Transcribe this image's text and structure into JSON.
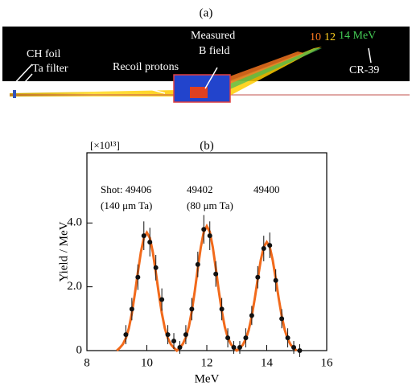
{
  "figure_a": {
    "label": "(a)",
    "ch_foil": "CH foil",
    "ta_filter": "Ta filter",
    "recoil": "Recoil protons",
    "measured": "Measured",
    "b_field": "B field",
    "e10": "10",
    "e12": "12",
    "e14": "14 MeV",
    "cr39": "CR-39"
  },
  "chart_data": {
    "type": "scatter",
    "title": "(b)",
    "multiplier": "[×10¹³]",
    "xlabel": "MeV",
    "ylabel": "Yield / MeV",
    "annotations": [
      "Shot: 49406",
      "(140 μm Ta)",
      "49402",
      "(80 μm Ta)",
      "49400"
    ],
    "xlim": [
      8,
      16
    ],
    "xticks": [
      8,
      10,
      12,
      14,
      16
    ],
    "ylim": [
      0,
      6.2
    ],
    "yticks": [
      0,
      {
        "value": 2,
        "label": "2.0"
      },
      {
        "value": 4,
        "label": "4.0"
      }
    ],
    "color": "#111111",
    "x": [
      9.3,
      9.5,
      9.7,
      9.9,
      10.1,
      10.3,
      10.5,
      10.7,
      10.9,
      11.1,
      11.3,
      11.5,
      11.7,
      11.9,
      12.1,
      12.3,
      12.5,
      12.7,
      12.9,
      13.1,
      13.3,
      13.5,
      13.7,
      13.9,
      14.1,
      14.3,
      14.5,
      14.7,
      14.9,
      15.1
    ],
    "values": [
      0.5,
      1.3,
      2.3,
      3.6,
      3.4,
      2.6,
      1.6,
      0.5,
      0.3,
      0.1,
      0.5,
      1.3,
      2.7,
      3.8,
      3.6,
      2.4,
      1.3,
      0.4,
      0.1,
      0.1,
      0.4,
      1.1,
      2.3,
      3.2,
      3.3,
      2.2,
      1.0,
      0.4,
      0.1,
      0
    ],
    "errors": [
      0.3,
      0.35,
      0.4,
      0.45,
      0.45,
      0.4,
      0.35,
      0.3,
      0.25,
      0.2,
      0.3,
      0.35,
      0.4,
      0.45,
      0.45,
      0.4,
      0.35,
      0.3,
      0.2,
      0.2,
      0.3,
      0.3,
      0.35,
      0.4,
      0.4,
      0.35,
      0.3,
      0.3,
      0.2,
      0.2
    ],
    "fit": {
      "color": "#f26a1b",
      "x": [
        9.0,
        9.1,
        9.2,
        9.3,
        9.4,
        9.5,
        9.6,
        9.7,
        9.8,
        9.9,
        10.0,
        10.1,
        10.2,
        10.3,
        10.4,
        10.5,
        10.6,
        10.7,
        10.8,
        10.9,
        11.0,
        11.1,
        11.2,
        11.3,
        11.4,
        11.5,
        11.6,
        11.7,
        11.8,
        11.9,
        12.0,
        12.1,
        12.2,
        12.3,
        12.4,
        12.5,
        12.6,
        12.7,
        12.8,
        12.9,
        13.0,
        13.1,
        13.2,
        13.3,
        13.4,
        13.5,
        13.6,
        13.7,
        13.8,
        13.9,
        14.0,
        14.1,
        14.2,
        14.3,
        14.4,
        14.5,
        14.6,
        14.7,
        14.8,
        14.9,
        15.0
      ],
      "values": [
        0,
        0.09,
        0.2,
        0.39,
        0.7,
        1.17,
        1.78,
        2.45,
        3.08,
        3.53,
        3.7,
        3.53,
        3.08,
        2.45,
        1.78,
        1.17,
        0.7,
        0.39,
        0.2,
        0.09,
        0,
        0.09,
        0.21,
        0.41,
        0.74,
        1.24,
        1.87,
        2.58,
        3.24,
        3.72,
        3.9,
        3.72,
        3.24,
        2.58,
        1.87,
        1.24,
        0.74,
        0.41,
        0.21,
        0.09,
        0,
        0.08,
        0.18,
        0.36,
        0.65,
        1.08,
        1.63,
        2.25,
        2.83,
        3.25,
        3.4,
        3.25,
        2.83,
        2.25,
        1.63,
        1.08,
        0.65,
        0.36,
        0.18,
        0.08,
        0
      ]
    }
  }
}
